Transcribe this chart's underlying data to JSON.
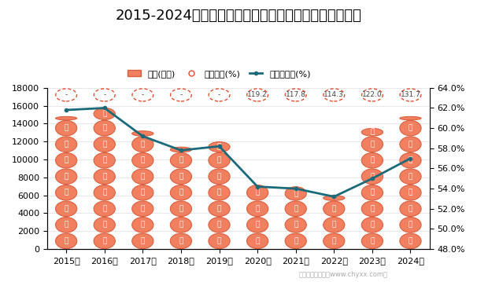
{
  "title": "2015-2024年有色金属冶炼和压延加工业企业负债统计图",
  "years": [
    "2015年",
    "2016年",
    "2017年",
    "2018年",
    "2019年",
    "2020年",
    "2021年",
    "2022年",
    "2023年",
    "2024年"
  ],
  "liabilities": [
    14800,
    15800,
    13200,
    11400,
    12000,
    7200,
    7000,
    6000,
    13500,
    14800
  ],
  "equity_ratio": [
    null,
    null,
    null,
    null,
    null,
    119.2,
    117.8,
    114.3,
    122.0,
    131.7
  ],
  "asset_liability_ratio": [
    61.8,
    62.0,
    59.2,
    57.8,
    58.2,
    54.2,
    54.0,
    53.2,
    55.0,
    57.0
  ],
  "left_ylim": [
    0,
    18000
  ],
  "right_ylim": [
    48.0,
    64.0
  ],
  "left_yticks": [
    0,
    2000,
    4000,
    6000,
    8000,
    10000,
    12000,
    14000,
    16000,
    18000
  ],
  "right_yticks": [
    48.0,
    50.0,
    52.0,
    54.0,
    56.0,
    58.0,
    60.0,
    62.0,
    64.0
  ],
  "circle_fill_color": "#F08060",
  "circle_edge_color": "#D86040",
  "circle_text_color": "#FFFFFF",
  "circle_text": "债",
  "dot_circle_edge_color": "#E05030",
  "line_color": "#1B6A7A",
  "line_width": 2.0,
  "background_color": "#FFFFFF",
  "title_fontsize": 13,
  "legend_fontsize": 8,
  "tick_fontsize": 8,
  "watermark": "制图：智研咨询（www.chyxx.com）"
}
